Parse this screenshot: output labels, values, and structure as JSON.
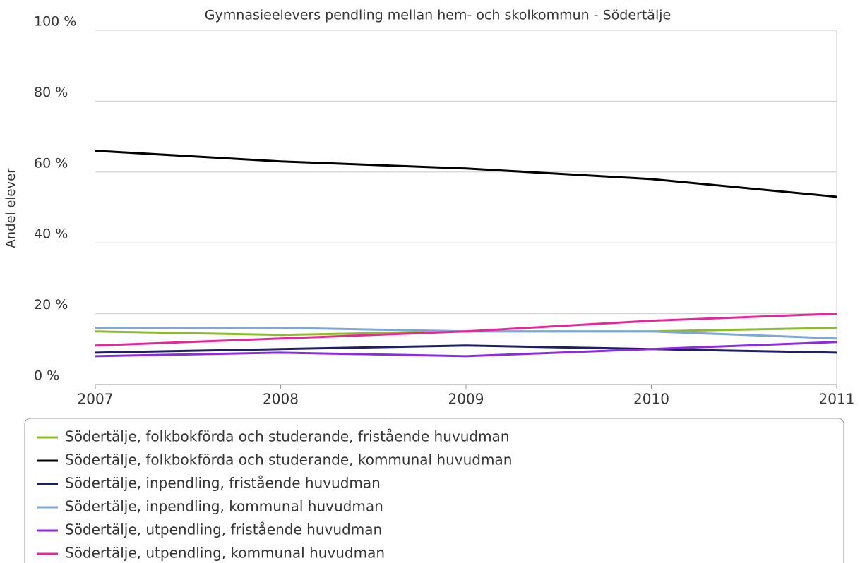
{
  "chart_data": {
    "type": "line",
    "title": "Gymnasieelevers pendling mellan hem- och skolkommun - Södertälje",
    "y_label": "Andel elever",
    "x": [
      2007,
      2008,
      2009,
      2010,
      2011
    ],
    "xlim": [
      2007,
      2011
    ],
    "xticks": [
      2007,
      2008,
      2009,
      2010,
      2011
    ],
    "ylim": [
      0,
      100
    ],
    "yticks": [
      {
        "value": 0,
        "label": "0 %"
      },
      {
        "value": 20,
        "label": "20 %"
      },
      {
        "value": 40,
        "label": "40 %"
      },
      {
        "value": 60,
        "label": "60 %"
      },
      {
        "value": 80,
        "label": "80 %"
      },
      {
        "value": 100,
        "label": "100 %"
      }
    ],
    "grid": true,
    "legend": "bottom",
    "series": [
      {
        "name": "Södertälje, folkbokförda och studerande, fristående huvudman",
        "color": "#8dbb2f",
        "values": [
          15,
          14,
          15,
          15,
          16
        ]
      },
      {
        "name": "Södertälje, folkbokförda och studerande, kommunal huvudman",
        "color": "#000000",
        "values": [
          66,
          63,
          61,
          58,
          53
        ]
      },
      {
        "name": "Södertälje, inpendling, fristående huvudman",
        "color": "#1f2060",
        "values": [
          9,
          10,
          11,
          10,
          9
        ]
      },
      {
        "name": "Södertälje, inpendling, kommunal huvudman",
        "color": "#7ea6d6",
        "values": [
          16,
          16,
          15,
          15,
          13
        ]
      },
      {
        "name": "Södertälje, utpendling, fristående huvudman",
        "color": "#8b2be2",
        "values": [
          8,
          9,
          8,
          10,
          12
        ]
      },
      {
        "name": "Södertälje, utpendling, kommunal huvudman",
        "color": "#e6279a",
        "values": [
          11,
          13,
          15,
          18,
          20
        ]
      }
    ]
  }
}
